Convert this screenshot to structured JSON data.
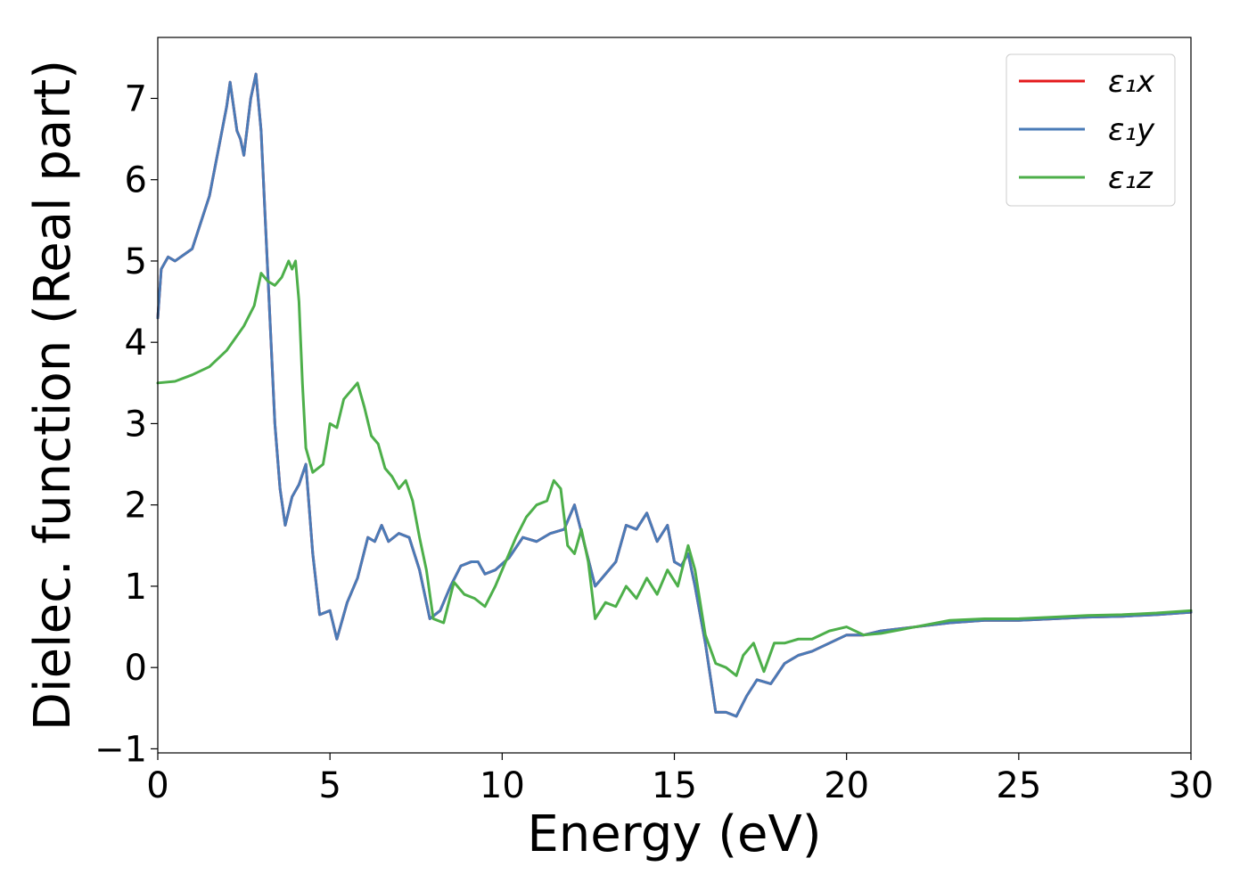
{
  "chart_data": {
    "type": "line",
    "xlabel": "Energy (eV)",
    "ylabel": "Dielec. function (Real part)",
    "xlim": [
      0,
      30
    ],
    "ylim": [
      -1.05,
      7.75
    ],
    "xticks": [
      0,
      5,
      10,
      15,
      20,
      25,
      30
    ],
    "xtick_labels": [
      "0",
      "5",
      "10",
      "15",
      "20",
      "25",
      "30"
    ],
    "yticks": [
      -1,
      0,
      1,
      2,
      3,
      4,
      5,
      6,
      7
    ],
    "ytick_labels": [
      "−1",
      "0",
      "1",
      "2",
      "3",
      "4",
      "5",
      "6",
      "7"
    ],
    "grid": false,
    "legend_position": "top-right",
    "series": [
      {
        "name": "ε₁x",
        "color": "#e41a1c",
        "x": [
          0,
          0.1,
          0.3,
          0.5,
          1.0,
          1.5,
          2.0,
          2.1,
          2.3,
          2.4,
          2.5,
          2.7,
          2.85,
          3.0,
          3.2,
          3.4,
          3.55,
          3.7,
          3.9,
          4.1,
          4.3,
          4.5,
          4.7,
          5.0,
          5.2,
          5.5,
          5.8,
          6.1,
          6.3,
          6.5,
          6.7,
          7.0,
          7.3,
          7.6,
          7.9,
          8.2,
          8.5,
          8.8,
          9.1,
          9.3,
          9.5,
          9.8,
          10.2,
          10.6,
          11.0,
          11.4,
          11.8,
          12.1,
          12.4,
          12.7,
          13.0,
          13.3,
          13.6,
          13.9,
          14.2,
          14.5,
          14.8,
          15.0,
          15.2,
          15.4,
          15.6,
          15.9,
          16.2,
          16.5,
          16.8,
          17.1,
          17.4,
          17.8,
          18.2,
          18.6,
          19.0,
          19.5,
          20.0,
          20.5,
          21.0,
          22.0,
          23.0,
          24.0,
          25.0,
          26.0,
          27.0,
          28.0,
          29.0,
          30.0
        ],
        "y": [
          4.3,
          4.9,
          5.05,
          5.0,
          5.15,
          5.8,
          6.9,
          7.2,
          6.6,
          6.5,
          6.3,
          7.0,
          7.3,
          6.6,
          4.8,
          3.0,
          2.2,
          1.75,
          2.1,
          2.25,
          2.5,
          1.4,
          0.65,
          0.7,
          0.35,
          0.8,
          1.1,
          1.6,
          1.55,
          1.75,
          1.55,
          1.65,
          1.6,
          1.2,
          0.6,
          0.7,
          1.0,
          1.25,
          1.3,
          1.3,
          1.15,
          1.2,
          1.35,
          1.6,
          1.55,
          1.65,
          1.7,
          2.0,
          1.5,
          1.0,
          1.15,
          1.3,
          1.75,
          1.7,
          1.9,
          1.55,
          1.75,
          1.3,
          1.25,
          1.4,
          1.0,
          0.3,
          -0.55,
          -0.55,
          -0.6,
          -0.35,
          -0.15,
          -0.2,
          0.05,
          0.15,
          0.2,
          0.3,
          0.4,
          0.4,
          0.45,
          0.5,
          0.55,
          0.58,
          0.58,
          0.6,
          0.62,
          0.63,
          0.65,
          0.68
        ]
      },
      {
        "name": "ε₁y",
        "color": "#4a7bb7",
        "x": [
          0,
          0.1,
          0.3,
          0.5,
          1.0,
          1.5,
          2.0,
          2.1,
          2.3,
          2.4,
          2.5,
          2.7,
          2.85,
          3.0,
          3.2,
          3.4,
          3.55,
          3.7,
          3.9,
          4.1,
          4.3,
          4.5,
          4.7,
          5.0,
          5.2,
          5.5,
          5.8,
          6.1,
          6.3,
          6.5,
          6.7,
          7.0,
          7.3,
          7.6,
          7.9,
          8.2,
          8.5,
          8.8,
          9.1,
          9.3,
          9.5,
          9.8,
          10.2,
          10.6,
          11.0,
          11.4,
          11.8,
          12.1,
          12.4,
          12.7,
          13.0,
          13.3,
          13.6,
          13.9,
          14.2,
          14.5,
          14.8,
          15.0,
          15.2,
          15.4,
          15.6,
          15.9,
          16.2,
          16.5,
          16.8,
          17.1,
          17.4,
          17.8,
          18.2,
          18.6,
          19.0,
          19.5,
          20.0,
          20.5,
          21.0,
          22.0,
          23.0,
          24.0,
          25.0,
          26.0,
          27.0,
          28.0,
          29.0,
          30.0
        ],
        "y": [
          4.3,
          4.9,
          5.05,
          5.0,
          5.15,
          5.8,
          6.9,
          7.2,
          6.6,
          6.5,
          6.3,
          7.0,
          7.3,
          6.6,
          4.8,
          3.0,
          2.2,
          1.75,
          2.1,
          2.25,
          2.5,
          1.4,
          0.65,
          0.7,
          0.35,
          0.8,
          1.1,
          1.6,
          1.55,
          1.75,
          1.55,
          1.65,
          1.6,
          1.2,
          0.6,
          0.7,
          1.0,
          1.25,
          1.3,
          1.3,
          1.15,
          1.2,
          1.35,
          1.6,
          1.55,
          1.65,
          1.7,
          2.0,
          1.5,
          1.0,
          1.15,
          1.3,
          1.75,
          1.7,
          1.9,
          1.55,
          1.75,
          1.3,
          1.25,
          1.4,
          1.0,
          0.3,
          -0.55,
          -0.55,
          -0.6,
          -0.35,
          -0.15,
          -0.2,
          0.05,
          0.15,
          0.2,
          0.3,
          0.4,
          0.4,
          0.45,
          0.5,
          0.55,
          0.58,
          0.58,
          0.6,
          0.62,
          0.63,
          0.65,
          0.68
        ]
      },
      {
        "name": "ε₁z",
        "color": "#4daf4a",
        "x": [
          0,
          0.5,
          1.0,
          1.5,
          2.0,
          2.5,
          2.8,
          3.0,
          3.2,
          3.4,
          3.6,
          3.8,
          3.9,
          4.0,
          4.1,
          4.2,
          4.3,
          4.5,
          4.8,
          5.0,
          5.2,
          5.4,
          5.6,
          5.8,
          6.0,
          6.2,
          6.4,
          6.6,
          6.8,
          7.0,
          7.2,
          7.4,
          7.6,
          7.8,
          8.0,
          8.3,
          8.6,
          8.9,
          9.2,
          9.5,
          9.8,
          10.1,
          10.4,
          10.7,
          11.0,
          11.3,
          11.5,
          11.7,
          11.9,
          12.1,
          12.3,
          12.5,
          12.7,
          13.0,
          13.3,
          13.6,
          13.9,
          14.2,
          14.5,
          14.8,
          15.1,
          15.4,
          15.6,
          15.9,
          16.2,
          16.5,
          16.8,
          17.0,
          17.3,
          17.6,
          17.9,
          18.2,
          18.6,
          19.0,
          19.5,
          20.0,
          20.5,
          21.0,
          22.0,
          23.0,
          24.0,
          25.0,
          26.0,
          27.0,
          28.0,
          29.0,
          30.0
        ],
        "y": [
          3.5,
          3.52,
          3.6,
          3.7,
          3.9,
          4.2,
          4.45,
          4.85,
          4.75,
          4.7,
          4.8,
          5.0,
          4.9,
          5.0,
          4.5,
          3.5,
          2.7,
          2.4,
          2.5,
          3.0,
          2.95,
          3.3,
          3.4,
          3.5,
          3.2,
          2.85,
          2.75,
          2.45,
          2.35,
          2.2,
          2.3,
          2.05,
          1.6,
          1.2,
          0.6,
          0.55,
          1.05,
          0.9,
          0.85,
          0.75,
          1.0,
          1.3,
          1.6,
          1.85,
          2.0,
          2.05,
          2.3,
          2.2,
          1.5,
          1.4,
          1.7,
          1.3,
          0.6,
          0.8,
          0.75,
          1.0,
          0.85,
          1.1,
          0.9,
          1.2,
          1.0,
          1.5,
          1.2,
          0.4,
          0.05,
          0.0,
          -0.1,
          0.15,
          0.3,
          -0.05,
          0.3,
          0.3,
          0.35,
          0.35,
          0.45,
          0.5,
          0.4,
          0.42,
          0.5,
          0.58,
          0.6,
          0.6,
          0.62,
          0.64,
          0.65,
          0.67,
          0.7
        ]
      }
    ]
  }
}
